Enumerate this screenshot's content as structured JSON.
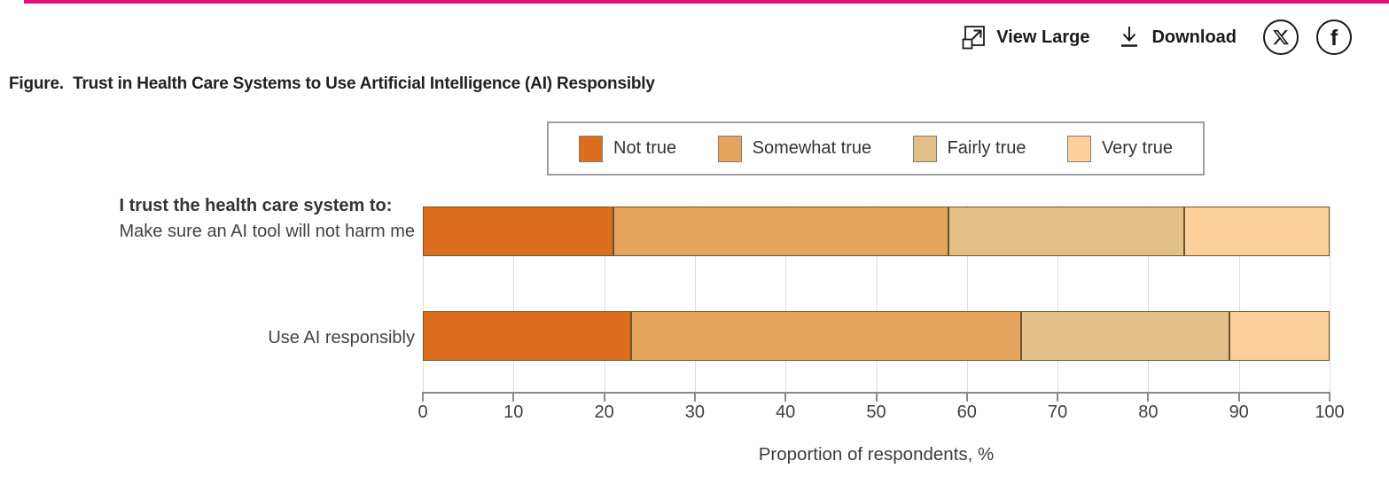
{
  "page": {
    "accent_color": "#e80c7a"
  },
  "toolbar": {
    "view_large_label": "View Large",
    "download_label": "Download",
    "facebook_glyph": "f"
  },
  "figure": {
    "title": "Figure.  Trust in Health Care Systems to Use Artificial Intelligence (AI) Responsibly"
  },
  "chart_data": {
    "type": "bar",
    "orientation": "horizontal",
    "stacked": true,
    "row_heading": "I trust the health care system to:",
    "categories": [
      "Make sure an AI tool will not harm me",
      "Use AI responsibly"
    ],
    "series": [
      {
        "name": "Not true",
        "color": "#db6f1f",
        "values": [
          21,
          23
        ]
      },
      {
        "name": "Somewhat true",
        "color": "#e6a45f",
        "values": [
          37,
          43
        ]
      },
      {
        "name": "Fairly true",
        "color": "#e4c089",
        "values": [
          26,
          23
        ]
      },
      {
        "name": "Very true",
        "color": "#fcd09a",
        "values": [
          16,
          11
        ]
      }
    ],
    "xlabel": "Proportion of respondents, %",
    "xlim": [
      0,
      100
    ],
    "xticks": [
      0,
      10,
      20,
      30,
      40,
      50,
      60,
      70,
      80,
      90,
      100
    ],
    "grid": true,
    "legend_position": "top-center"
  }
}
